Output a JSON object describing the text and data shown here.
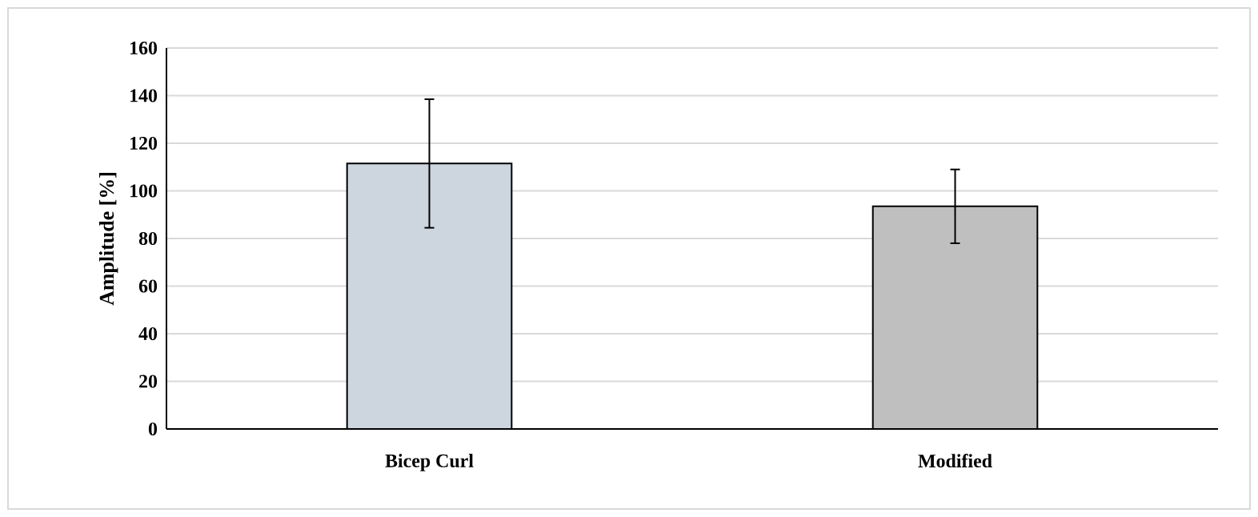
{
  "chart_data": {
    "type": "bar",
    "ylabel": "Amplitude [%]",
    "categories": [
      "Bicep Curl",
      "Modified"
    ],
    "values": [
      111.5,
      93.5
    ],
    "errors": [
      27,
      15.5
    ],
    "colors": [
      "#cdd5df",
      "#bfbfbf"
    ],
    "ylim": [
      0,
      160
    ],
    "yticks": [
      0,
      20,
      40,
      60,
      80,
      100,
      120,
      140,
      160
    ],
    "grid": "y"
  }
}
